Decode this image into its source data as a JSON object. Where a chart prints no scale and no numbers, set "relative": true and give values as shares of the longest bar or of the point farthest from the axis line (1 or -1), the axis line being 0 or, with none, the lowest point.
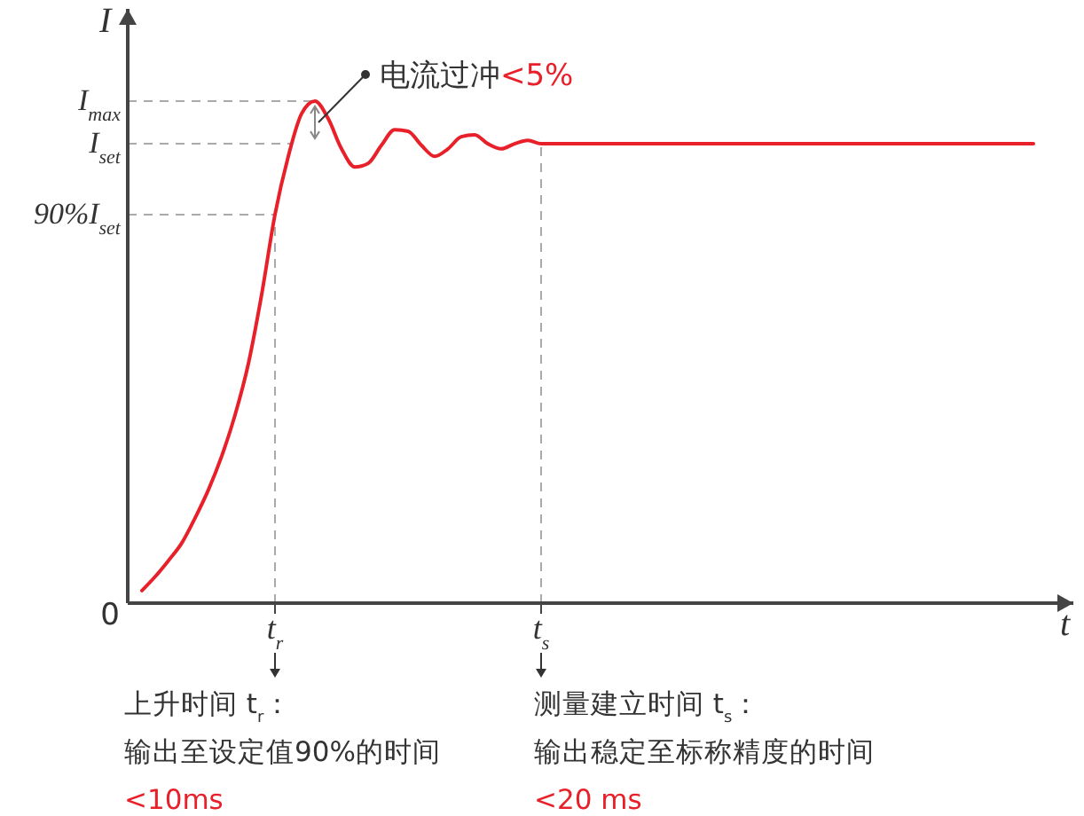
{
  "chart_data": {
    "type": "line",
    "relative": true,
    "xlabel": "t",
    "ylabel": "I",
    "categories": [
      null,
      null,
      null,
      null,
      null,
      null,
      null,
      null,
      null,
      null,
      "t$_{r}$",
      null,
      null,
      null,
      null,
      null,
      null,
      null,
      null,
      null,
      null,
      null,
      null,
      null,
      null,
      null,
      null,
      null,
      null,
      null,
      "t$_{s}$",
      null,
      null,
      null,
      null,
      null,
      null,
      null,
      null,
      null,
      null,
      null,
      null,
      null,
      null,
      null,
      null,
      null,
      null,
      null,
      null,
      null,
      null,
      null,
      null,
      null,
      null,
      null,
      null,
      null,
      null,
      null,
      null,
      null,
      null,
      null,
      null,
      null
    ],
    "series": [
      {
        "color": "#e8202a",
        "values": [
          0.025,
          0.053,
          0.085,
          0.12,
          0.17,
          0.226,
          0.293,
          0.375,
          0.477,
          0.615,
          0.774,
          0.89,
          0.975,
          1.0,
          0.965,
          0.905,
          0.869,
          0.876,
          0.912,
          0.943,
          0.94,
          0.912,
          0.89,
          0.905,
          0.929,
          0.933,
          0.915,
          0.905,
          0.915,
          0.922,
          0.915,
          0.915,
          0.915,
          0.915,
          0.915,
          0.915,
          0.915,
          0.915,
          0.915,
          0.915,
          0.915,
          0.915,
          0.915,
          0.915,
          0.915,
          0.915,
          0.915,
          0.915,
          0.915,
          0.915,
          0.915,
          0.915,
          0.915,
          0.915,
          0.915,
          0.915,
          0.915,
          0.915,
          0.915,
          0.915,
          0.915,
          0.915,
          0.915,
          0.915,
          0.915,
          0.915,
          0.915,
          0.915
        ]
      }
    ],
    "ref_lines": [
      {
        "axis": "y",
        "value": 1.0,
        "label": "I$_{max}$",
        "line_style": "dashed",
        "color": "#aaaaaa"
      },
      {
        "axis": "y",
        "value": 0.915,
        "label": "I$_{set}$",
        "line_style": "dashed",
        "color": "#aaaaaa"
      },
      {
        "axis": "y",
        "value": 0.774,
        "label": "90%I$_{set}$",
        "line_style": "dashed",
        "color": "#aaaaaa"
      }
    ],
    "annotations": [
      "0",
      "电流过冲",
      "<5%",
      "上升时间 t$_{r}$：",
      "输出至设定值90%的时间",
      "<10ms",
      "测量建立时间 t$_{s}$：",
      "输出稳定至标称精度的时间",
      "<20 ms"
    ],
    "grid": "x",
    "marker": "none",
    "line_style": "solid"
  }
}
